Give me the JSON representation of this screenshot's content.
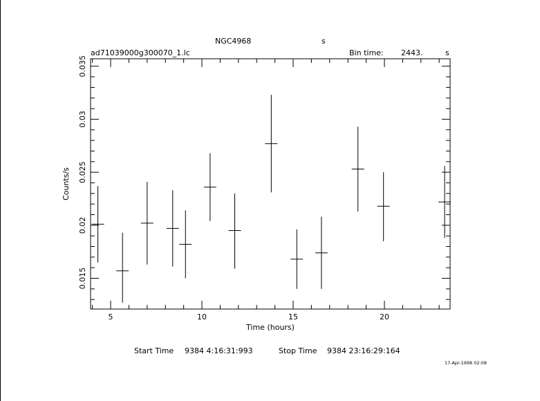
{
  "header": {
    "object": "NGC4968",
    "object_unit": "s",
    "file_name": "ad71039000g300070_1.lc",
    "bin_time_label": "Bin time:",
    "bin_time_value": "2443.",
    "bin_time_unit": "s"
  },
  "footer": {
    "start_label": "Start Time",
    "start_value": "9384  4:16:31:993",
    "stop_label": "Stop Time",
    "stop_value": "9384 23:16:29:164",
    "timestamp": "17-Apr-1998 02:08"
  },
  "chart_data": {
    "type": "scatter",
    "xlabel": "Time (hours)",
    "ylabel": "Counts/s",
    "xlim": [
      3.9,
      23.6
    ],
    "ylim": [
      0.0121,
      0.0357
    ],
    "x_ticks": [
      5,
      10,
      15,
      20
    ],
    "y_ticks": [
      0.015,
      0.02,
      0.025,
      0.03,
      0.035
    ],
    "x_tick_labels": [
      "5",
      "10",
      "15",
      "20"
    ],
    "y_tick_labels": [
      "0.015",
      "0.02",
      "0.025",
      "0.03",
      "0.035"
    ],
    "grid": false,
    "series": [
      {
        "points": [
          {
            "x": 4.3,
            "y": 0.0201,
            "xerr": 0.34,
            "ylo": 0.0165,
            "yhi": 0.0237
          },
          {
            "x": 5.65,
            "y": 0.0157,
            "xerr": 0.34,
            "ylo": 0.0127,
            "yhi": 0.0193
          },
          {
            "x": 7.0,
            "y": 0.0202,
            "xerr": 0.34,
            "ylo": 0.0163,
            "yhi": 0.0241
          },
          {
            "x": 8.4,
            "y": 0.0197,
            "xerr": 0.34,
            "ylo": 0.0161,
            "yhi": 0.0233
          },
          {
            "x": 9.1,
            "y": 0.0182,
            "xerr": 0.34,
            "ylo": 0.015,
            "yhi": 0.0214
          },
          {
            "x": 10.45,
            "y": 0.0236,
            "xerr": 0.34,
            "ylo": 0.0204,
            "yhi": 0.0268
          },
          {
            "x": 11.8,
            "y": 0.0195,
            "xerr": 0.34,
            "ylo": 0.0159,
            "yhi": 0.023
          },
          {
            "x": 13.8,
            "y": 0.0277,
            "xerr": 0.34,
            "ylo": 0.0231,
            "yhi": 0.0323
          },
          {
            "x": 15.2,
            "y": 0.0168,
            "xerr": 0.34,
            "ylo": 0.014,
            "yhi": 0.0196
          },
          {
            "x": 16.55,
            "y": 0.0174,
            "xerr": 0.34,
            "ylo": 0.014,
            "yhi": 0.0208
          },
          {
            "x": 18.55,
            "y": 0.0253,
            "xerr": 0.34,
            "ylo": 0.0213,
            "yhi": 0.0293
          },
          {
            "x": 19.95,
            "y": 0.0218,
            "xerr": 0.34,
            "ylo": 0.0185,
            "yhi": 0.025
          },
          {
            "x": 23.3,
            "y": 0.0222,
            "xerr": 0.34,
            "ylo": 0.0188,
            "yhi": 0.0256
          }
        ]
      }
    ]
  }
}
